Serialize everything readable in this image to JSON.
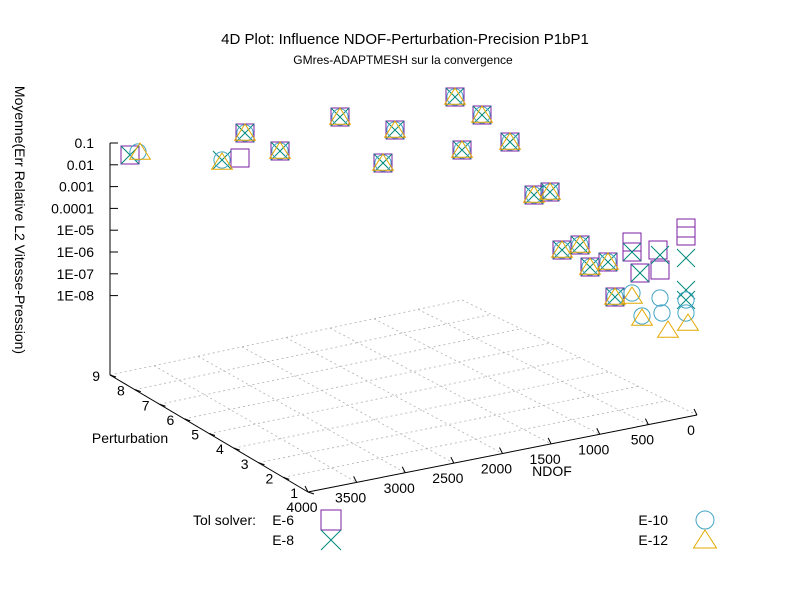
{
  "chart_data": {
    "type": "scatter",
    "title": "4D Plot: Influence NDOF-Perturbation-Precision P1bP1",
    "subtitle": "GMres-ADAPTMESH sur la convergence",
    "zlabel": "Moyenne(Err Relative L2 Vitesse-Pression)",
    "ylabel": "Perturbation",
    "xlabel": "NDOF",
    "z_scale": "log",
    "z_ticks": [
      "0.1",
      "0.01",
      "0.001",
      "0.0001",
      "1E-05",
      "1E-06",
      "1E-07",
      "1E-08"
    ],
    "perturbation_ticks": [
      "1",
      "2",
      "3",
      "4",
      "5",
      "6",
      "7",
      "8",
      "9"
    ],
    "ndof_ticks": [
      "0",
      "500",
      "1000",
      "1500",
      "2000",
      "2500",
      "3000",
      "3500",
      "4000"
    ],
    "grid": true,
    "legend_title": "Tol solver:",
    "colors": {
      "E-6": "#7b1fa2",
      "E-8": "#00897b",
      "E-10": "#42a5c5",
      "E-12": "#e3a800"
    },
    "series": [
      {
        "name": "E-6",
        "marker": "square",
        "points": [
          [
            130,
            155
          ],
          [
            240,
            158
          ],
          [
            245,
            133
          ],
          [
            280,
            151
          ],
          [
            340,
            117
          ],
          [
            383,
            163
          ],
          [
            395,
            130
          ],
          [
            455,
            97
          ],
          [
            462,
            150
          ],
          [
            482,
            115
          ],
          [
            510,
            142
          ],
          [
            534,
            195
          ],
          [
            550,
            192
          ],
          [
            562,
            250
          ],
          [
            580,
            245
          ],
          [
            590,
            267
          ],
          [
            608,
            262
          ],
          [
            615,
            297
          ],
          [
            632,
            242
          ],
          [
            632,
            252
          ],
          [
            640,
            273
          ],
          [
            658,
            250
          ],
          [
            660,
            270
          ],
          [
            686,
            228
          ],
          [
            686,
            236
          ]
        ]
      },
      {
        "name": "E-8",
        "marker": "cross",
        "points": [
          [
            130,
            155
          ],
          [
            222,
            160
          ],
          [
            245,
            133
          ],
          [
            280,
            151
          ],
          [
            340,
            117
          ],
          [
            383,
            163
          ],
          [
            395,
            130
          ],
          [
            455,
            97
          ],
          [
            462,
            150
          ],
          [
            482,
            115
          ],
          [
            510,
            142
          ],
          [
            534,
            195
          ],
          [
            550,
            192
          ],
          [
            562,
            250
          ],
          [
            580,
            245
          ],
          [
            590,
            267
          ],
          [
            608,
            262
          ],
          [
            615,
            297
          ],
          [
            632,
            252
          ],
          [
            640,
            273
          ],
          [
            660,
            255
          ],
          [
            686,
            258
          ],
          [
            686,
            290
          ],
          [
            686,
            300
          ]
        ]
      },
      {
        "name": "E-10",
        "marker": "circle",
        "points": [
          [
            138,
            152
          ],
          [
            222,
            160
          ],
          [
            245,
            133
          ],
          [
            280,
            151
          ],
          [
            340,
            117
          ],
          [
            383,
            163
          ],
          [
            395,
            130
          ],
          [
            455,
            97
          ],
          [
            462,
            150
          ],
          [
            482,
            115
          ],
          [
            510,
            142
          ],
          [
            534,
            195
          ],
          [
            550,
            192
          ],
          [
            562,
            250
          ],
          [
            580,
            245
          ],
          [
            590,
            267
          ],
          [
            608,
            262
          ],
          [
            615,
            297
          ],
          [
            632,
            293
          ],
          [
            642,
            316
          ],
          [
            660,
            298
          ],
          [
            662,
            313
          ],
          [
            686,
            300
          ],
          [
            686,
            313
          ]
        ]
      },
      {
        "name": "E-12",
        "marker": "triangle",
        "points": [
          [
            140,
            152
          ],
          [
            222,
            162
          ],
          [
            245,
            133
          ],
          [
            280,
            151
          ],
          [
            340,
            117
          ],
          [
            383,
            163
          ],
          [
            395,
            130
          ],
          [
            455,
            97
          ],
          [
            462,
            150
          ],
          [
            482,
            115
          ],
          [
            510,
            142
          ],
          [
            534,
            195
          ],
          [
            550,
            192
          ],
          [
            562,
            250
          ],
          [
            580,
            245
          ],
          [
            590,
            267
          ],
          [
            608,
            262
          ],
          [
            615,
            297
          ],
          [
            632,
            296
          ],
          [
            642,
            318
          ],
          [
            668,
            330
          ],
          [
            688,
            323
          ]
        ]
      }
    ]
  }
}
